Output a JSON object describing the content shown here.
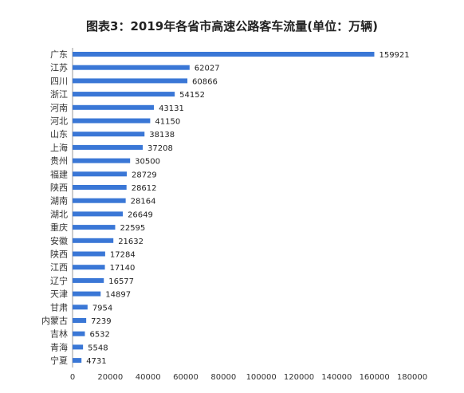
{
  "chart_data": {
    "type": "bar",
    "orientation": "horizontal",
    "title": "图表3：2019年各省市高速公路客车流量(单位：万辆)",
    "xlabel": "",
    "ylabel": "",
    "xlim": [
      0,
      180000
    ],
    "x_ticks": [
      "0",
      "20000",
      "40000",
      "60000",
      "80000",
      "100000",
      "120000",
      "140000",
      "160000",
      "180000"
    ],
    "grid": false,
    "legend": "none",
    "bar_color": "#3a77d6",
    "categories": [
      "广东",
      "江苏",
      "四川",
      "浙江",
      "河南",
      "河北",
      "山东",
      "上海",
      "贵州",
      "福建",
      "陕西",
      "湖南",
      "湖北",
      "重庆",
      "安徽",
      "陕西",
      "江西",
      "辽宁",
      "天津",
      "甘肃",
      "内蒙古",
      "吉林",
      "青海",
      "宁夏"
    ],
    "values": [
      159921,
      62027,
      60866,
      54152,
      43131,
      41150,
      38138,
      37208,
      30500,
      28729,
      28612,
      28164,
      26649,
      22595,
      21632,
      17284,
      17140,
      16577,
      14897,
      7954,
      7239,
      6532,
      5548,
      4731
    ],
    "value_labels": [
      "159921",
      "62027",
      "60866",
      "54152",
      "43131",
      "41150",
      "38138",
      "37208",
      "30500",
      "28729",
      "28612",
      "28164",
      "26649",
      "22595",
      "21632",
      "17284",
      "17140",
      "16577",
      "14897",
      "7954",
      "7239",
      "6532",
      "5548",
      "4731"
    ]
  }
}
